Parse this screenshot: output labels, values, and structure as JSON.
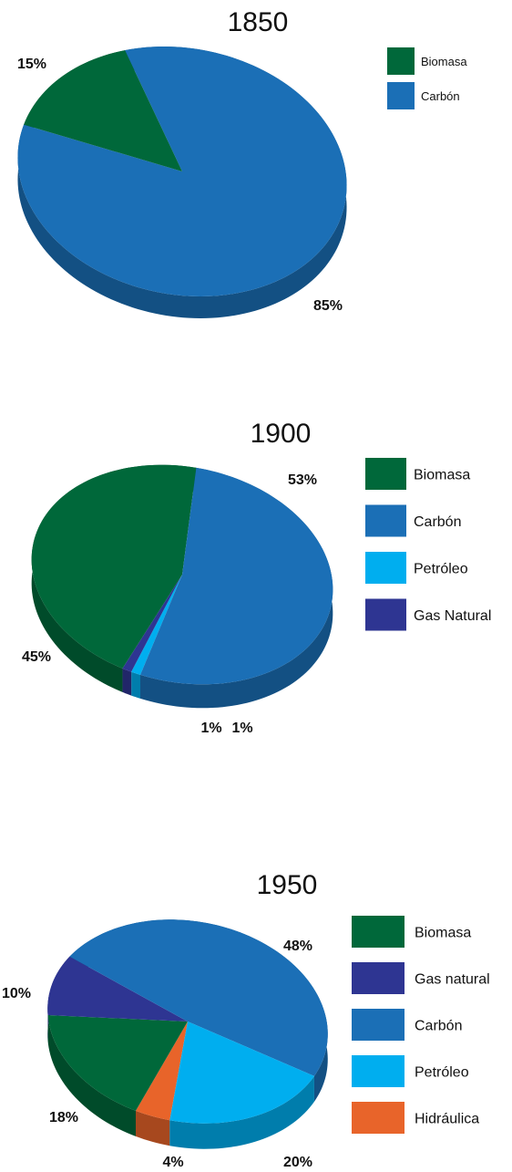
{
  "chart_data": [
    {
      "type": "pie",
      "title": "1850",
      "categories": [
        "Biomasa",
        "Carbón"
      ],
      "values": [
        15,
        85
      ],
      "labels": [
        "15%",
        "85%"
      ],
      "colors": [
        "#00683A",
        "#1B6FB6"
      ],
      "legend": [
        "Biomasa",
        "Carbón"
      ],
      "legend_placement": "right"
    },
    {
      "type": "pie",
      "title": "1900",
      "categories": [
        "Biomasa",
        "Carbón",
        "Petróleo",
        "Gas Natural"
      ],
      "values": [
        45,
        53,
        1,
        1
      ],
      "labels": [
        "45%",
        "53%",
        "1%",
        "1%"
      ],
      "colors": [
        "#00683A",
        "#1B6FB6",
        "#00AEEF",
        "#2E3592"
      ],
      "legend": [
        "Biomasa",
        "Carbón",
        "Petróleo",
        "Gas Natural"
      ],
      "legend_placement": "right"
    },
    {
      "type": "pie",
      "title": "1950",
      "categories": [
        "Biomasa",
        "Gas natural",
        "Carbón",
        "Petróleo",
        "Hidráulica"
      ],
      "values": [
        18,
        10,
        48,
        20,
        4
      ],
      "labels": [
        "18%",
        "10%",
        "48%",
        "20%",
        "4%"
      ],
      "colors": [
        "#00683A",
        "#2E3592",
        "#1B6FB6",
        "#00AEEF",
        "#E8642A"
      ],
      "legend": [
        "Biomasa",
        "Gas natural",
        "Carbón",
        "Petróleo",
        "Hidráulica"
      ],
      "legend_placement": "right"
    }
  ]
}
